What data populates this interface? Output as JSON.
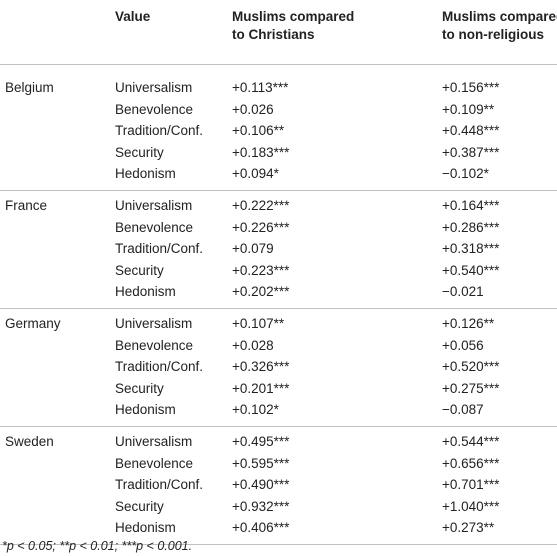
{
  "table": {
    "header": [
      "Value",
      "Muslims compared to Christians",
      "Muslims compared to non-religious"
    ],
    "groups": [
      {
        "country": "Belgium",
        "rows": [
          [
            "Universalism",
            "+0.113***",
            "+0.156***"
          ],
          [
            "Benevolence",
            "+0.026",
            "+0.109**"
          ],
          [
            "Tradition/Conf.",
            "+0.106**",
            "+0.448***"
          ],
          [
            "Security",
            "+0.183***",
            "+0.387***"
          ],
          [
            "Hedonism",
            "+0.094*",
            "−0.102*"
          ]
        ]
      },
      {
        "country": "France",
        "rows": [
          [
            "Universalism",
            "+0.222***",
            "+0.164***"
          ],
          [
            "Benevolence",
            "+0.226***",
            "+0.286***"
          ],
          [
            "Tradition/Conf.",
            "+0.079",
            "+0.318***"
          ],
          [
            "Security",
            "+0.223***",
            "+0.540***"
          ],
          [
            "Hedonism",
            "+0.202***",
            "−0.021"
          ]
        ]
      },
      {
        "country": "Germany",
        "rows": [
          [
            "Universalism",
            "+0.107**",
            "+0.126**"
          ],
          [
            "Benevolence",
            "+0.028",
            "+0.056"
          ],
          [
            "Tradition/Conf.",
            "+0.326***",
            "+0.520***"
          ],
          [
            "Security",
            "+0.201***",
            "+0.275***"
          ],
          [
            "Hedonism",
            "+0.102*",
            "−0.087"
          ]
        ]
      },
      {
        "country": "Sweden",
        "rows": [
          [
            "Universalism",
            "+0.495***",
            "+0.544***"
          ],
          [
            "Benevolence",
            "+0.595***",
            "+0.656***"
          ],
          [
            "Tradition/Conf.",
            "+0.490***",
            "+0.701***"
          ],
          [
            "Security",
            "+0.932***",
            "+1.040***"
          ],
          [
            "Hedonism",
            "+0.406***",
            "+0.273**"
          ]
        ]
      }
    ],
    "footnote": "*p < 0.05; **p < 0.01; ***p < 0.001."
  }
}
